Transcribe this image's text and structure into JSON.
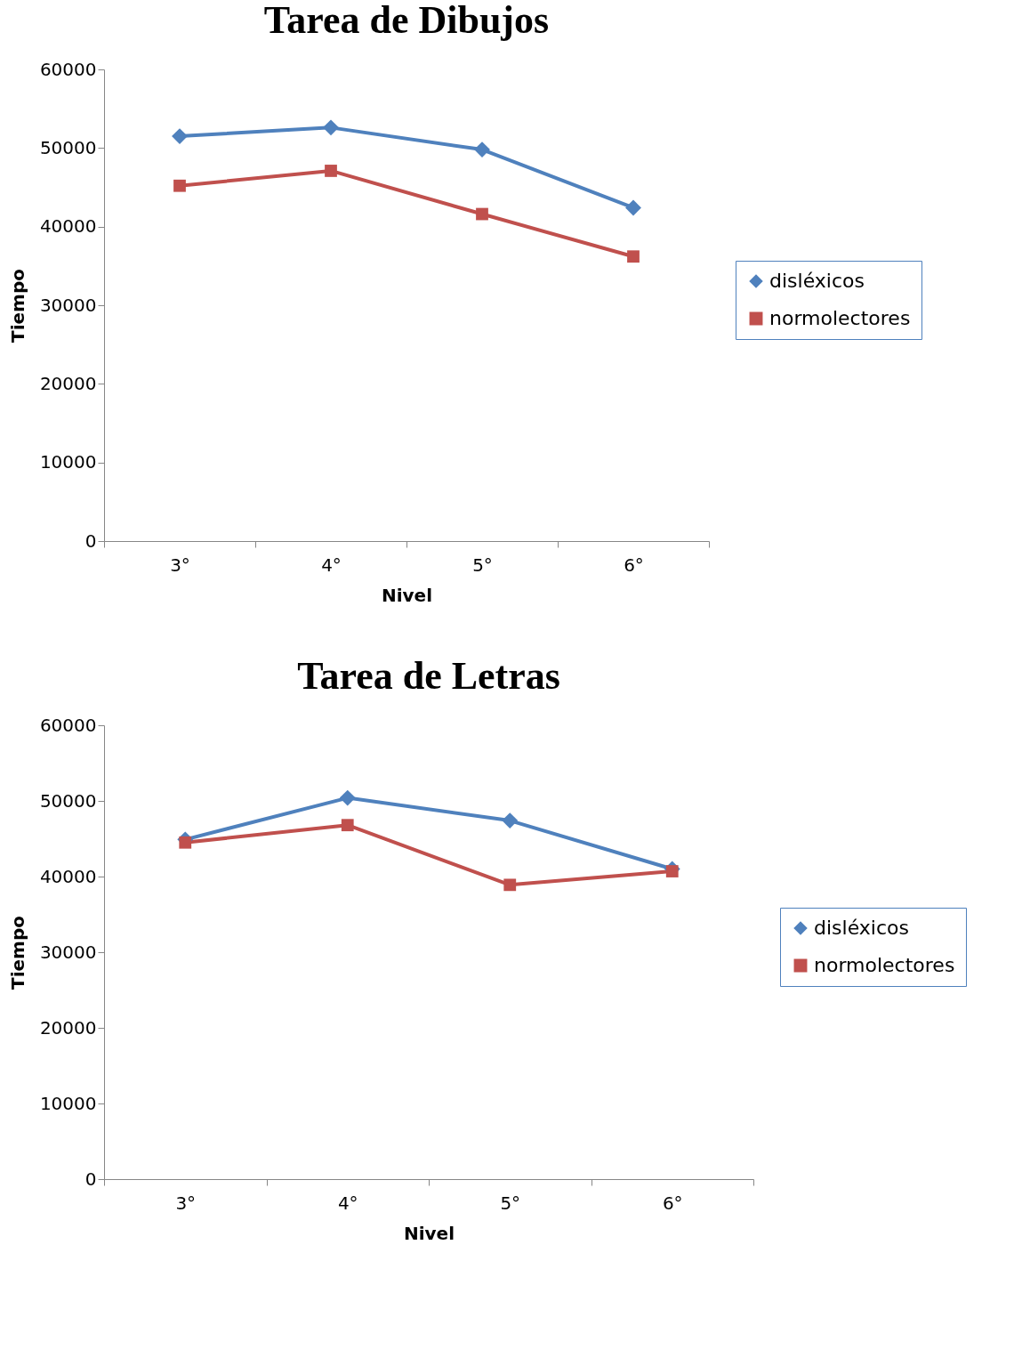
{
  "chart_data": [
    {
      "type": "line",
      "title": "Tarea de Dibujos",
      "xlabel": "Nivel",
      "ylabel": "Tiempo",
      "categories": [
        "3°",
        "4°",
        "5°",
        "6°"
      ],
      "ylim": [
        0,
        60000
      ],
      "yticks": [
        0,
        10000,
        20000,
        30000,
        40000,
        50000,
        60000
      ],
      "legend": "right",
      "grid": false,
      "series": [
        {
          "name": "disléxicos",
          "color": "#4f81bd",
          "marker": "diamond",
          "values": [
            51500,
            52600,
            49800,
            42400
          ]
        },
        {
          "name": "normolectores",
          "color": "#c0504d",
          "marker": "square",
          "values": [
            45200,
            47100,
            41600,
            36200
          ]
        }
      ]
    },
    {
      "type": "line",
      "title": "Tarea de Letras",
      "xlabel": "Nivel",
      "ylabel": "Tiempo",
      "categories": [
        "3°",
        "4°",
        "5°",
        "6°"
      ],
      "ylim": [
        0,
        60000
      ],
      "yticks": [
        0,
        10000,
        20000,
        30000,
        40000,
        50000,
        60000
      ],
      "legend": "right",
      "grid": false,
      "series": [
        {
          "name": "disléxicos",
          "color": "#4f81bd",
          "marker": "diamond",
          "values": [
            44900,
            50400,
            47400,
            41000
          ]
        },
        {
          "name": "normolectores",
          "color": "#c0504d",
          "marker": "square",
          "values": [
            44500,
            46800,
            38900,
            40700
          ]
        }
      ]
    }
  ]
}
